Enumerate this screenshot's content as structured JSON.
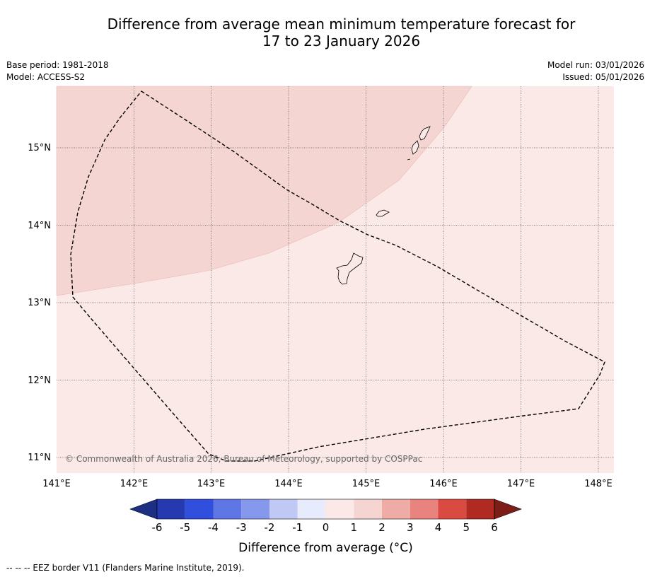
{
  "title": {
    "line1": "Difference from average mean minimum temperature forecast for",
    "line2": "17 to 23 January 2026"
  },
  "meta": {
    "base_period": "Base period: 1981-2018",
    "model": "Model: ACCESS-S2",
    "model_run": "Model run: 03/01/2026",
    "issued": "Issued: 05/01/2026"
  },
  "map": {
    "lon_range": [
      141.0,
      148.2
    ],
    "lat_range": [
      10.8,
      15.8
    ],
    "lon_ticks": [
      "141°E",
      "142°E",
      "143°E",
      "144°E",
      "145°E",
      "146°E",
      "147°E",
      "148°E"
    ],
    "lat_ticks": [
      "15°N",
      "14°N",
      "13°N",
      "12°N",
      "11°N"
    ],
    "copyright": "© Commonwealth of Australia 2026, Bureau of Meteorology, supported by COSPPac",
    "background_color": "#fbe9e7",
    "anomaly_region_color": "#f5d5d2"
  },
  "colorbar": {
    "ticks": [
      "-6",
      "-5",
      "-4",
      "-3",
      "-2",
      "-1",
      "0",
      "1",
      "2",
      "3",
      "4",
      "5",
      "6"
    ],
    "colors": [
      "#2539b0",
      "#2f4fdc",
      "#5e76e6",
      "#8598ec",
      "#c0c8f4",
      "#e8ebfb",
      "#fbe9e7",
      "#f5d5d2",
      "#efaca6",
      "#e8847d",
      "#d94a40",
      "#b02a21"
    ],
    "under_color": "#1c2f85",
    "over_color": "#7c1d17",
    "label": "Difference from average (°C)"
  },
  "footer": "--  --  -- EEZ border V11 (Flanders Marine Institute, 2019)."
}
